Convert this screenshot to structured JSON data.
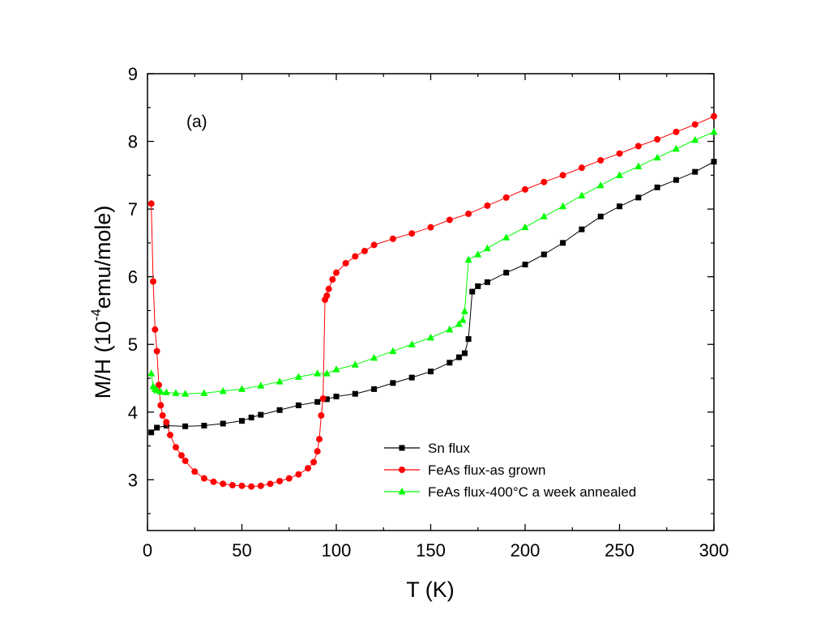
{
  "chart_data": {
    "type": "line",
    "panel_label": "(a)",
    "xlabel": "T (K)",
    "ylabel_prefix": "M/H (10",
    "ylabel_exponent": "-4",
    "ylabel_suffix": "emu/mole)",
    "xlim": [
      0,
      300
    ],
    "ylim": [
      2.25,
      9
    ],
    "xticks": [
      0,
      50,
      100,
      150,
      200,
      250,
      300
    ],
    "yticks": [
      3,
      4,
      5,
      6,
      7,
      8,
      9
    ],
    "grid": false,
    "legend_position": "lower-right",
    "series": [
      {
        "name": "Sn flux",
        "color": "#000000",
        "marker": "square",
        "x": [
          2,
          5,
          10,
          20,
          30,
          40,
          50,
          55,
          60,
          70,
          80,
          90,
          95,
          100,
          110,
          120,
          130,
          140,
          150,
          160,
          165,
          168,
          170,
          172,
          175,
          180,
          190,
          200,
          210,
          220,
          230,
          240,
          250,
          260,
          270,
          280,
          290,
          300
        ],
        "y": [
          3.7,
          3.77,
          3.8,
          3.79,
          3.8,
          3.83,
          3.87,
          3.92,
          3.96,
          4.03,
          4.1,
          4.15,
          4.19,
          4.23,
          4.27,
          4.34,
          4.43,
          4.51,
          4.6,
          4.73,
          4.81,
          4.87,
          5.08,
          5.78,
          5.86,
          5.92,
          6.06,
          6.18,
          6.33,
          6.5,
          6.7,
          6.89,
          7.04,
          7.17,
          7.32,
          7.43,
          7.55,
          7.7
        ]
      },
      {
        "name": "FeAs flux-as grown",
        "color": "#ff0000",
        "marker": "circle",
        "x": [
          2,
          3,
          4,
          5,
          6,
          7,
          8,
          10,
          12,
          15,
          18,
          20,
          25,
          30,
          35,
          40,
          45,
          50,
          55,
          60,
          65,
          70,
          75,
          80,
          85,
          88,
          90,
          91,
          92,
          93,
          94,
          95,
          96,
          98,
          100,
          105,
          110,
          115,
          120,
          130,
          140,
          150,
          160,
          170,
          180,
          190,
          200,
          210,
          220,
          230,
          240,
          250,
          260,
          270,
          280,
          290,
          300
        ],
        "y": [
          7.08,
          5.93,
          5.22,
          4.9,
          4.4,
          4.1,
          3.95,
          3.85,
          3.66,
          3.48,
          3.36,
          3.28,
          3.12,
          3.02,
          2.97,
          2.94,
          2.92,
          2.91,
          2.9,
          2.91,
          2.94,
          2.98,
          3.02,
          3.08,
          3.17,
          3.26,
          3.42,
          3.6,
          3.95,
          4.2,
          5.66,
          5.72,
          5.82,
          5.96,
          6.06,
          6.2,
          6.3,
          6.38,
          6.47,
          6.56,
          6.64,
          6.73,
          6.84,
          6.93,
          7.05,
          7.17,
          7.29,
          7.4,
          7.5,
          7.61,
          7.72,
          7.82,
          7.93,
          8.03,
          8.14,
          8.25,
          8.37
        ]
      },
      {
        "name": "FeAs flux-400°C a week annealed",
        "color": "#00ff00",
        "marker": "triangle",
        "x": [
          2,
          3,
          4,
          5,
          7,
          10,
          15,
          20,
          30,
          40,
          50,
          60,
          70,
          80,
          90,
          95,
          100,
          110,
          120,
          130,
          140,
          150,
          160,
          165,
          167,
          168,
          170,
          175,
          180,
          190,
          200,
          210,
          220,
          230,
          240,
          250,
          260,
          270,
          280,
          290,
          300
        ],
        "y": [
          4.57,
          4.38,
          4.34,
          4.32,
          4.3,
          4.29,
          4.28,
          4.27,
          4.28,
          4.31,
          4.34,
          4.39,
          4.45,
          4.52,
          4.57,
          4.57,
          4.63,
          4.7,
          4.8,
          4.9,
          5.0,
          5.1,
          5.22,
          5.3,
          5.36,
          5.49,
          6.25,
          6.33,
          6.42,
          6.58,
          6.73,
          6.89,
          7.04,
          7.2,
          7.35,
          7.5,
          7.63,
          7.76,
          7.89,
          8.02,
          8.14
        ]
      }
    ]
  }
}
